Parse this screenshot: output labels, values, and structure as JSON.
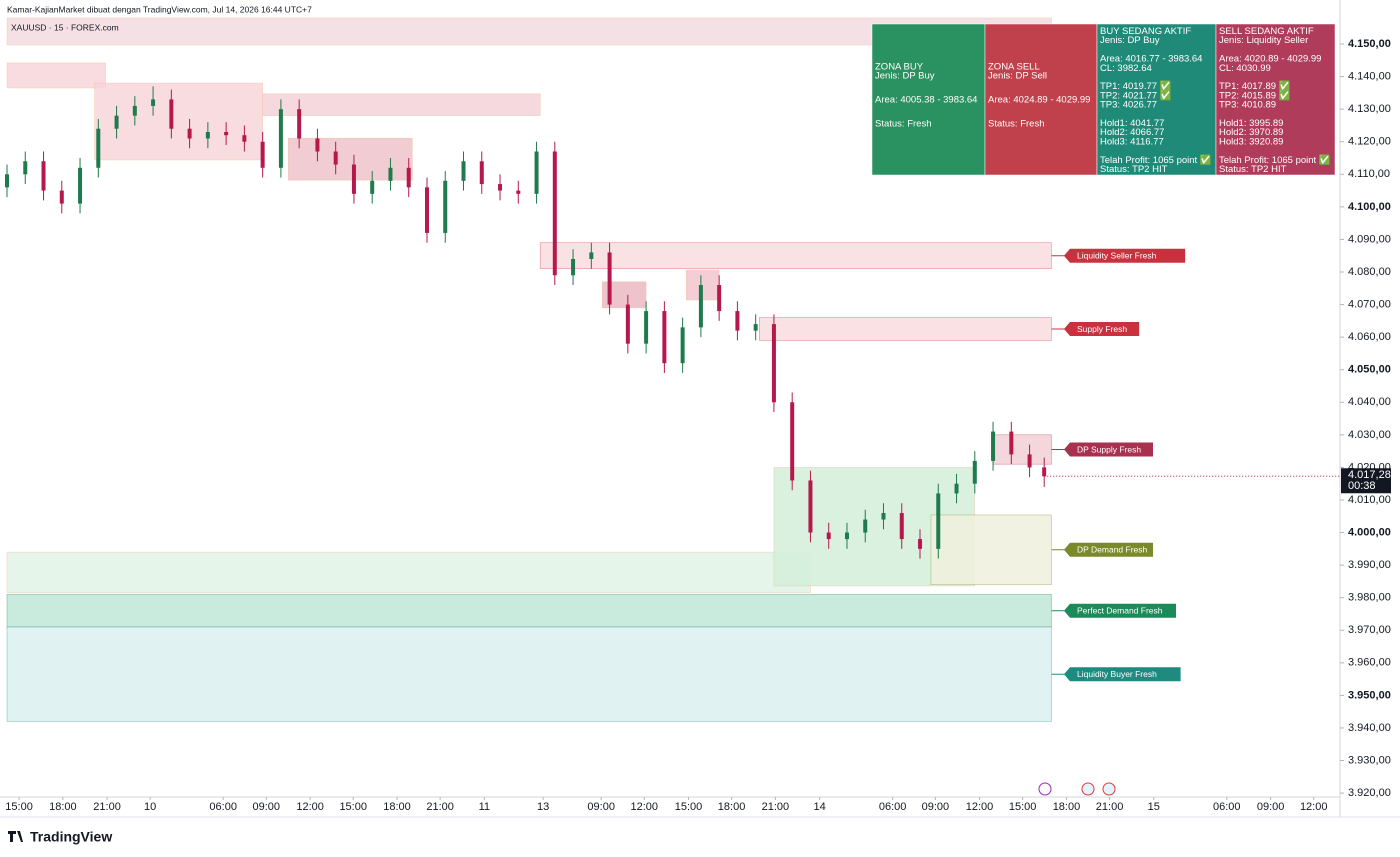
{
  "header": {
    "author": "Kamar-KajianMarket dibuat dengan TradingView.com, Jul 14, 2026 16:44 UTC+7",
    "symbol": "XAUUSD · 15 · FOREX.com"
  },
  "footer": {
    "brand": "TradingView"
  },
  "chart_data": {
    "type": "candlestick",
    "x": [
      0,
      5,
      10,
      15,
      20,
      25,
      30,
      35,
      40,
      45,
      50,
      55,
      60,
      65,
      70,
      75,
      80,
      85,
      90,
      95,
      100,
      105,
      110,
      115,
      120,
      125,
      130,
      135,
      140,
      145,
      150,
      155,
      160,
      165,
      170,
      175,
      180,
      185,
      190,
      195,
      200,
      205,
      210,
      215,
      220,
      225,
      230,
      235,
      240,
      245,
      250,
      255,
      260,
      265,
      270,
      275,
      280,
      284
    ],
    "open": [
      4106,
      4110,
      4114,
      4105,
      4101,
      4112,
      4124,
      4128,
      4131,
      4133,
      4124,
      4121,
      4123,
      4122,
      4120,
      4112,
      4130,
      4121,
      4117,
      4113,
      4104,
      4108,
      4112,
      4106,
      4092,
      4108,
      4114,
      4107,
      4105,
      4104,
      4117,
      4079,
      4084,
      4086,
      4070,
      4058,
      4068,
      4052,
      4063,
      4076,
      4068,
      4062,
      4064,
      4040,
      4016,
      4000,
      3998,
      4000,
      4004,
      4006,
      3998,
      3995,
      4012,
      4015,
      4022,
      4031,
      4024,
      4020
    ],
    "high": [
      4113,
      4117,
      4117,
      4108,
      4115,
      4127,
      4131,
      4134,
      4137,
      4136,
      4127,
      4126,
      4126,
      4125,
      4123,
      4133,
      4133,
      4124,
      4120,
      4116,
      4111,
      4115,
      4115,
      4109,
      4111,
      4117,
      4117,
      4110,
      4108,
      4120,
      4120,
      4087,
      4089,
      4089,
      4073,
      4071,
      4071,
      4066,
      4079,
      4079,
      4071,
      4067,
      4067,
      4043,
      4019,
      4003,
      4003,
      4007,
      4009,
      4009,
      4001,
      4015,
      4018,
      4025,
      4034,
      4034,
      4027,
      4023
    ],
    "low": [
      4103,
      4107,
      4102,
      4098,
      4098,
      4109,
      4121,
      4125,
      4128,
      4121,
      4118,
      4118,
      4119,
      4117,
      4109,
      4109,
      4118,
      4114,
      4110,
      4101,
      4101,
      4105,
      4103,
      4089,
      4089,
      4105,
      4104,
      4102,
      4101,
      4101,
      4076,
      4076,
      4081,
      4067,
      4055,
      4055,
      4049,
      4049,
      4060,
      4065,
      4059,
      4059,
      4037,
      4013,
      3997,
      3995,
      3995,
      3997,
      4001,
      3995,
      3992,
      3992,
      4009,
      4012,
      4019,
      4021,
      4017,
      4014
    ],
    "close": [
      4110,
      4114,
      4105,
      4101,
      4112,
      4124,
      4128,
      4131,
      4133,
      4124,
      4121,
      4123,
      4122,
      4120,
      4112,
      4130,
      4121,
      4117,
      4113,
      4104,
      4108,
      4112,
      4106,
      4092,
      4108,
      4114,
      4107,
      4105,
      4104,
      4117,
      4079,
      4084,
      4086,
      4070,
      4058,
      4068,
      4052,
      4063,
      4076,
      4068,
      4062,
      4064,
      4040,
      4016,
      4000,
      3998,
      4000,
      4004,
      4006,
      3998,
      3995,
      4012,
      4015,
      4022,
      4031,
      4024,
      4020,
      4017.28
    ],
    "up_color": "#1f7a4d",
    "down_color": "#b5194b",
    "xlim": [
      0,
      365
    ],
    "ylim": [
      3918.8,
      4158.3
    ],
    "xticks": [
      {
        "value": 3.3,
        "label": "15:00"
      },
      {
        "value": 15.3,
        "label": "18:00"
      },
      {
        "value": 27.4,
        "label": "21:00"
      },
      {
        "value": 39.2,
        "label": "10"
      },
      {
        "value": 59.2,
        "label": "06:00"
      },
      {
        "value": 71,
        "label": "09:00"
      },
      {
        "value": 83,
        "label": "12:00"
      },
      {
        "value": 94.8,
        "label": "15:00"
      },
      {
        "value": 106.8,
        "label": "18:00"
      },
      {
        "value": 118.6,
        "label": "21:00"
      },
      {
        "value": 130.7,
        "label": "11"
      },
      {
        "value": 146.8,
        "label": "13"
      },
      {
        "value": 162.7,
        "label": "09:00"
      },
      {
        "value": 174.5,
        "label": "12:00"
      },
      {
        "value": 186.6,
        "label": "15:00"
      },
      {
        "value": 198.4,
        "label": "18:00"
      },
      {
        "value": 210.4,
        "label": "21:00"
      },
      {
        "value": 222.5,
        "label": "14"
      },
      {
        "value": 242.5,
        "label": "06:00"
      },
      {
        "value": 254.2,
        "label": "09:00"
      },
      {
        "value": 266.3,
        "label": "12:00"
      },
      {
        "value": 278.1,
        "label": "15:00"
      },
      {
        "value": 290.1,
        "label": "18:00"
      },
      {
        "value": 301.9,
        "label": "21:00"
      },
      {
        "value": 314,
        "label": "15"
      },
      {
        "value": 334,
        "label": "06:00"
      },
      {
        "value": 346,
        "label": "09:00"
      },
      {
        "value": 357.8,
        "label": "12:00"
      }
    ],
    "yticks": [
      {
        "value": 4150,
        "label": "4.150,00"
      },
      {
        "value": 4140,
        "label": "4.140,00"
      },
      {
        "value": 4130,
        "label": "4.130,00"
      },
      {
        "value": 4120,
        "label": "4.120,00"
      },
      {
        "value": 4110,
        "label": "4.110,00"
      },
      {
        "value": 4100,
        "label": "4.100,00"
      },
      {
        "value": 4090,
        "label": "4.090,00"
      },
      {
        "value": 4080,
        "label": "4.080,00"
      },
      {
        "value": 4070,
        "label": "4.070,00"
      },
      {
        "value": 4060,
        "label": "4.060,00"
      },
      {
        "value": 4050,
        "label": "4.050,00"
      },
      {
        "value": 4040,
        "label": "4.040,00"
      },
      {
        "value": 4030,
        "label": "4.030,00"
      },
      {
        "value": 4020,
        "label": "4.020,00"
      },
      {
        "value": 4010,
        "label": "4.010,00"
      },
      {
        "value": 4000,
        "label": "4.000,00"
      },
      {
        "value": 3990,
        "label": "3.990,00"
      },
      {
        "value": 3980,
        "label": "3.980,00"
      },
      {
        "value": 3970,
        "label": "3.970,00"
      },
      {
        "value": 3960,
        "label": "3.960,00"
      },
      {
        "value": 3950,
        "label": "3.950,00"
      },
      {
        "value": 3940,
        "label": "3.940,00"
      },
      {
        "value": 3930,
        "label": "3.930,00"
      },
      {
        "value": 3920,
        "label": "3.920,00"
      }
    ],
    "last_price": {
      "value": 4017.28,
      "label": "4.017,28"
    },
    "countdown": "00:38",
    "zones": [
      {
        "range": [
          4149.7,
          4158
        ],
        "x": [
          0,
          286
        ],
        "color": "#f3dbe0"
      },
      {
        "range": [
          4136.5,
          4144.2
        ],
        "x": [
          0,
          27
        ],
        "color": "#f8d6da"
      },
      {
        "range": [
          4114.4,
          4138
        ],
        "x": [
          24,
          70
        ],
        "color": "#f8d6da"
      },
      {
        "range": [
          4128,
          4134.7
        ],
        "x": [
          70,
          146
        ],
        "color": "#f3d2d8"
      },
      {
        "range": [
          4108.2,
          4121.1
        ],
        "x": [
          77,
          111
        ],
        "color": "#efc3cb"
      },
      {
        "range": [
          4069,
          4077
        ],
        "x": [
          163,
          175
        ],
        "color": "#ecb8c3"
      },
      {
        "range": [
          4071.4,
          4080.6
        ],
        "x": [
          186,
          195
        ],
        "color": "#f2c6cc"
      },
      {
        "range": [
          3981.5,
          3994
        ],
        "x": [
          0,
          220
        ],
        "color": "#e0f3e6"
      },
      {
        "range": [
          3983.6,
          4020
        ],
        "x": [
          210,
          265
        ],
        "color": "#d3eedb"
      },
      {
        "label": "Liquidity Seller Fresh",
        "range": [
          4081,
          4089
        ],
        "x": [
          146,
          286
        ],
        "color": "#f8dcdf",
        "tag": "#c8323f"
      },
      {
        "label": "Supply Fresh",
        "range": [
          4059,
          4066
        ],
        "x": [
          206,
          286
        ],
        "color": "#f8dcdf",
        "tag": "#c8323f"
      },
      {
        "label": "DP Supply Fresh",
        "range": [
          4021,
          4030
        ],
        "x": [
          270,
          286
        ],
        "color": "#f2d0d6",
        "tag": "#a8314f"
      },
      {
        "label": "DP Demand Fresh",
        "range": [
          3984,
          4005.4
        ],
        "x": [
          253,
          286
        ],
        "color": "#eef0dc",
        "tag": "#7a8a2a"
      },
      {
        "label": "Perfect Demand Fresh",
        "range": [
          3971,
          3981
        ],
        "x": [
          0,
          286
        ],
        "color": "#bfe7d8",
        "tag": "#1d8a5a"
      },
      {
        "label": "Liquidity Buyer Fresh",
        "range": [
          3942,
          3971
        ],
        "x": [
          0,
          286
        ],
        "color": "#dbf0ee",
        "tag": "#1f8a80"
      }
    ]
  },
  "panels": [
    {
      "color": "#2a9160",
      "blocks": [
        [
          "ZONA BUY",
          "Jenis: DP Buy"
        ],
        [
          "Area: 4005.38 - 3983.64"
        ],
        [
          "Status: Fresh"
        ]
      ]
    },
    {
      "color": "#c0414c",
      "blocks": [
        [
          "ZONA SELL",
          "Jenis: DP Sell"
        ],
        [
          "Area: 4024.89 - 4029.99"
        ],
        [
          "Status: Fresh"
        ]
      ]
    },
    {
      "color": "#1f8a78",
      "blocks": [
        [
          "BUY SEDANG AKTIF",
          "Jenis: DP Buy"
        ],
        [
          "Area: 4016.77 - 3983.64",
          "CL: 3982.64"
        ],
        [
          "TP1: 4019.77 ✅",
          "TP2: 4021.77 ✅",
          "TP3: 4026.77"
        ],
        [
          "Hold1: 4041.77",
          "Hold2: 4066.77",
          "Hold3: 4116.77"
        ],
        [
          "Telah Profit: 1065 point ✅",
          "Status: TP2 HIT"
        ]
      ]
    },
    {
      "color": "#b03c5c",
      "blocks": [
        [
          "SELL SEDANG AKTIF",
          "Jenis: Liquidity Seller"
        ],
        [
          "Area: 4020.89 - 4029.99",
          "CL: 4030.99"
        ],
        [
          "TP1: 4017.89 ✅",
          "TP2: 4015.89 ✅",
          "TP3: 4010.89"
        ],
        [
          "Hold1: 3995.89",
          "Hold2: 3970.89",
          "Hold3: 3920.89"
        ],
        [
          "Telah Profit: 1065 point ✅",
          "Status: TP2 HIT"
        ]
      ]
    }
  ]
}
